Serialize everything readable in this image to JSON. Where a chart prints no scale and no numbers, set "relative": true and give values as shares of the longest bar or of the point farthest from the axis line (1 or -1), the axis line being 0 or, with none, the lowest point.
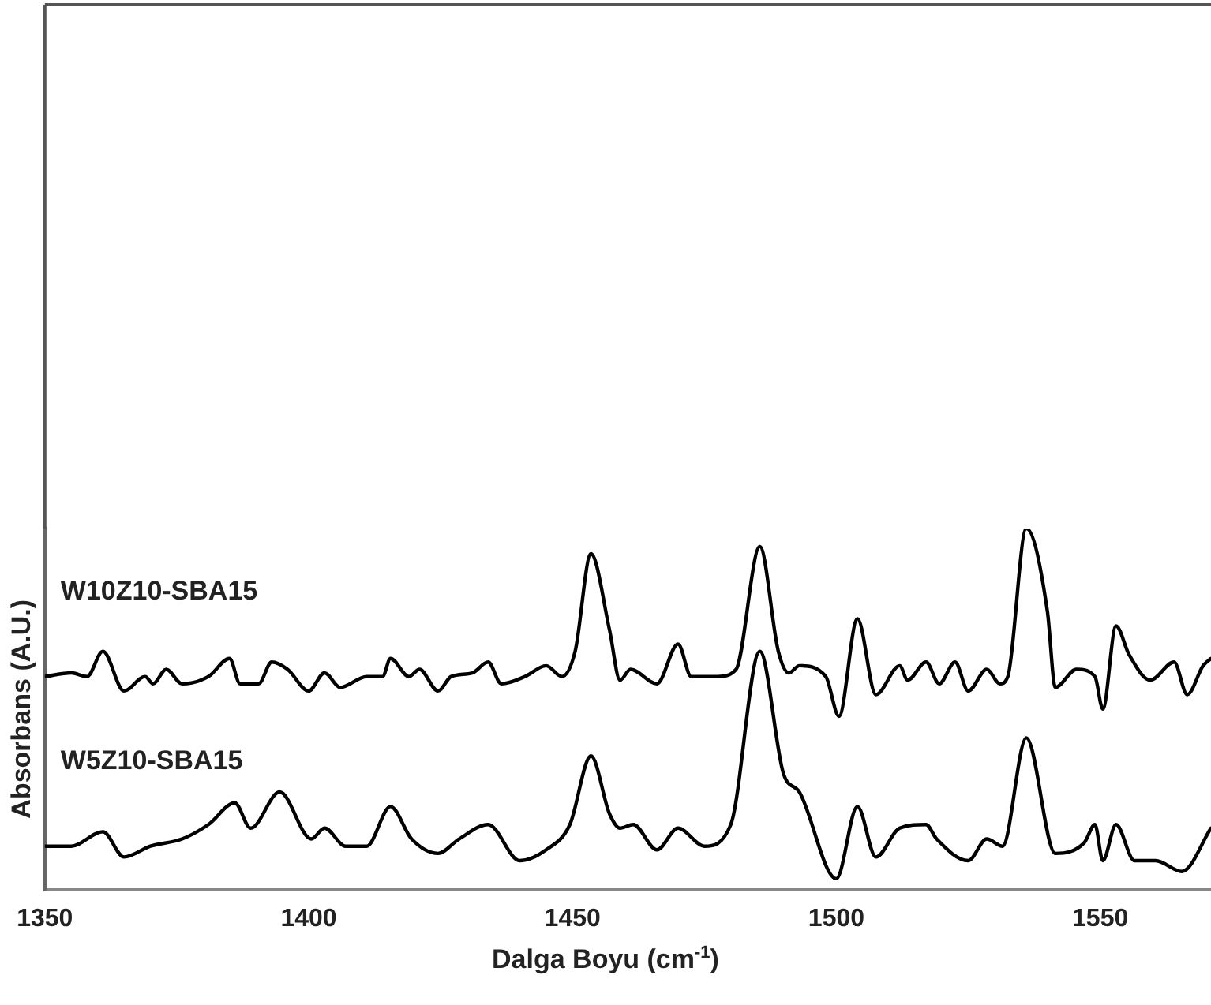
{
  "chart_data": {
    "type": "line",
    "xlabel": "Dalga Boyu (cm$^{-1}$)",
    "ylabel": "Absorbans (A.U.)",
    "relative": true,
    "tick_labels": "x",
    "grid": false,
    "legend": false,
    "marker": "none",
    "line_style": "solid",
    "xlim": [
      1350,
      1571
    ],
    "xticks": [
      1350,
      1400,
      1450,
      1500,
      1550
    ],
    "series": [
      {
        "name": "W10Z10-SBA15",
        "color": "#000000",
        "x": [
          1350,
          1355,
          1358,
          1361,
          1365,
          1369,
          1370.5,
          1373,
          1376,
          1381,
          1385,
          1387,
          1390.5,
          1393,
          1396,
          1400,
          1403,
          1406,
          1411,
          1414,
          1415.5,
          1419,
          1421,
          1424.5,
          1427,
          1431,
          1434,
          1436.5,
          1441,
          1445,
          1448,
          1450.5,
          1453.5,
          1457,
          1459,
          1461,
          1466,
          1470,
          1472.5,
          1477.5,
          1481,
          1485.5,
          1489,
          1491,
          1493,
          1498,
          1500.5,
          1504,
          1507.5,
          1512,
          1513.5,
          1517,
          1519.5,
          1522.5,
          1525,
          1528.5,
          1531,
          1532.5,
          1536,
          1540,
          1541.5,
          1545.5,
          1549,
          1550.5,
          1553,
          1555.5,
          1559.5,
          1564,
          1566.5,
          1569.5,
          1571
        ],
        "values": [
          0.59,
          0.6,
          0.59,
          0.66,
          0.55,
          0.59,
          0.57,
          0.61,
          0.57,
          0.59,
          0.64,
          0.57,
          0.57,
          0.63,
          0.61,
          0.55,
          0.6,
          0.56,
          0.59,
          0.59,
          0.64,
          0.59,
          0.61,
          0.55,
          0.59,
          0.6,
          0.63,
          0.57,
          0.59,
          0.62,
          0.59,
          0.66,
          0.93,
          0.72,
          0.58,
          0.61,
          0.57,
          0.68,
          0.59,
          0.59,
          0.61,
          0.95,
          0.66,
          0.6,
          0.62,
          0.59,
          0.48,
          0.75,
          0.54,
          0.62,
          0.58,
          0.63,
          0.57,
          0.63,
          0.55,
          0.61,
          0.57,
          0.59,
          1.0,
          0.77,
          0.56,
          0.61,
          0.59,
          0.5,
          0.73,
          0.65,
          0.58,
          0.63,
          0.54,
          0.62,
          0.64
        ]
      },
      {
        "name": "W5Z10-SBA15",
        "color": "#000000",
        "x": [
          1350,
          1355,
          1361,
          1365,
          1370,
          1376,
          1381,
          1386,
          1389,
          1394.5,
          1400.5,
          1403,
          1407,
          1411,
          1415.5,
          1419.5,
          1424.5,
          1428.5,
          1434,
          1440,
          1445,
          1449.5,
          1453.5,
          1457,
          1459,
          1461.5,
          1466,
          1470,
          1475,
          1480,
          1485.5,
          1490,
          1493,
          1500,
          1504,
          1507.5,
          1512,
          1517,
          1519,
          1525,
          1528.5,
          1531.5,
          1536,
          1541.5,
          1547,
          1549,
          1550.5,
          1553,
          1556.5,
          1560.5,
          1565.5,
          1571
        ],
        "values": [
          0.12,
          0.12,
          0.16,
          0.09,
          0.12,
          0.14,
          0.18,
          0.24,
          0.17,
          0.27,
          0.14,
          0.17,
          0.12,
          0.12,
          0.23,
          0.14,
          0.1,
          0.14,
          0.18,
          0.08,
          0.11,
          0.18,
          0.37,
          0.21,
          0.17,
          0.18,
          0.11,
          0.17,
          0.12,
          0.18,
          0.66,
          0.32,
          0.27,
          0.03,
          0.23,
          0.09,
          0.17,
          0.18,
          0.14,
          0.08,
          0.14,
          0.12,
          0.42,
          0.1,
          0.13,
          0.18,
          0.08,
          0.18,
          0.08,
          0.08,
          0.05,
          0.17
        ]
      }
    ]
  }
}
